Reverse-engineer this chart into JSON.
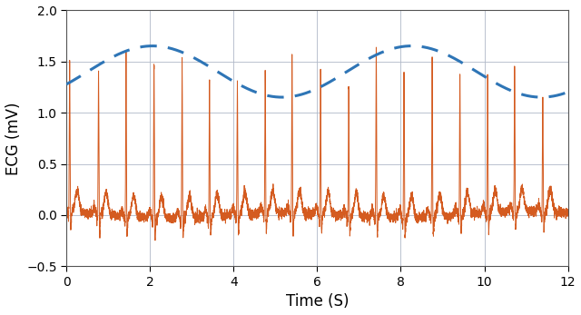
{
  "title": "",
  "xlabel": "Time (S)",
  "ylabel": "ECG (mV)",
  "xlim": [
    0,
    12
  ],
  "ylim": [
    -0.5,
    2
  ],
  "xticks": [
    0,
    2,
    4,
    6,
    8,
    10,
    12
  ],
  "yticks": [
    -0.5,
    0,
    0.5,
    1,
    1.5,
    2
  ],
  "ecg_color": "#D45B20",
  "resp_color": "#2E75B6",
  "background_color": "#ffffff",
  "grid_color": "#b0b8c8",
  "ecg_linewidth": 0.7,
  "resp_linewidth": 2.2,
  "resp_amplitude": 0.25,
  "resp_baseline": 1.4,
  "resp_period": 6.2,
  "resp_phase": -0.52,
  "heart_rate_bpm": 90,
  "duration": 12,
  "sample_rate": 500,
  "r_peak_height_mean": 1.45,
  "r_peak_height_std": 0.1,
  "noise_std": 0.025,
  "figsize": [
    6.4,
    3.47
  ],
  "dpi": 100
}
